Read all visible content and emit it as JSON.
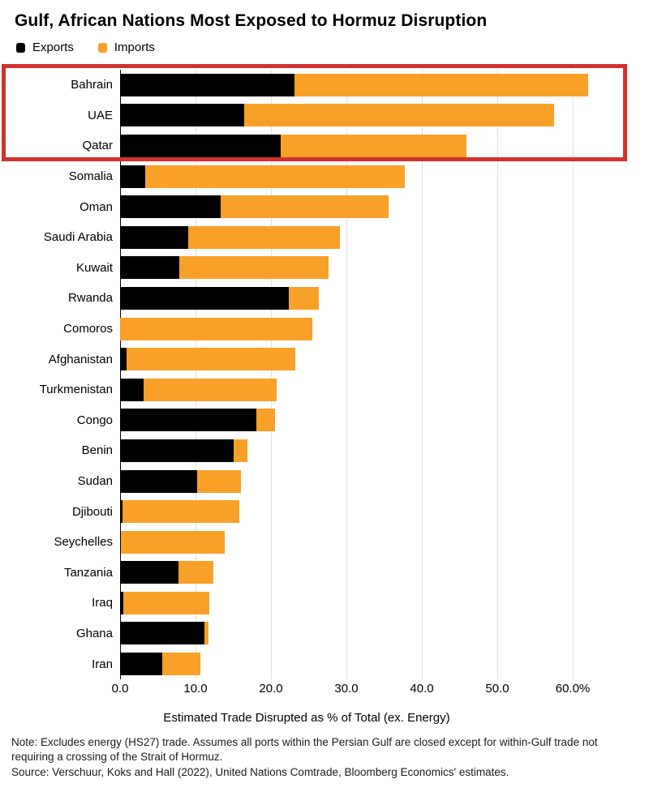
{
  "title": "Gulf, African Nations Most Exposed to Hormuz Disruption",
  "legend": [
    {
      "label": "Exports",
      "color": "#000000"
    },
    {
      "label": "Imports",
      "color": "#f8a028"
    }
  ],
  "colors": {
    "exports": "#000000",
    "imports": "#f8a028",
    "highlight_box": "#d2322e",
    "gridline": "#e0e0e0"
  },
  "chart_data": {
    "type": "bar",
    "orientation": "horizontal",
    "stacked": true,
    "title": "Gulf, African Nations Most Exposed to Hormuz Disruption",
    "xlabel": "Estimated Trade Disrupted as % of Total (ex. Energy)",
    "ylabel": "",
    "xlim": [
      0,
      65.5
    ],
    "grid": "vertical",
    "legend_position": "top-left",
    "categories": [
      "Bahrain",
      "UAE",
      "Qatar",
      "Somalia",
      "Oman",
      "Saudi Arabia",
      "Kuwait",
      "Rwanda",
      "Comoros",
      "Afghanistan",
      "Turkmenistan",
      "Congo",
      "Benin",
      "Sudan",
      "Djibouti",
      "Seychelles",
      "Tanzania",
      "Iraq",
      "Ghana",
      "Iran"
    ],
    "series": [
      {
        "name": "Exports",
        "values": [
          23.1,
          16.5,
          21.3,
          3.3,
          13.3,
          9.0,
          7.8,
          22.4,
          0.0,
          0.9,
          3.1,
          18.1,
          15.0,
          10.2,
          0.3,
          0.1,
          7.7,
          0.4,
          11.2,
          5.6
        ]
      },
      {
        "name": "Imports",
        "values": [
          38.9,
          41.0,
          24.6,
          34.4,
          22.3,
          20.1,
          19.8,
          3.9,
          25.5,
          22.3,
          17.6,
          2.4,
          1.9,
          5.8,
          15.5,
          13.8,
          4.7,
          11.4,
          0.5,
          5.0
        ]
      }
    ],
    "tick_values": [
      0,
      10,
      20,
      30,
      40,
      50,
      60
    ],
    "ticks": [
      "0.0",
      "10.0",
      "20.0",
      "30.0",
      "40.0",
      "50.0",
      "60.0%"
    ],
    "highlighted_categories": [
      "Bahrain",
      "UAE",
      "Qatar"
    ]
  },
  "footnote": {
    "note": "Note: Excludes energy (HS27) trade. Assumes all ports within the Persian Gulf are closed except for within-Gulf trade not requiring a crossing of the Strait of Hormuz.",
    "source": "Source: Verschuur, Koks and Hall (2022), United Nations Comtrade, Bloomberg Economics' estimates."
  }
}
